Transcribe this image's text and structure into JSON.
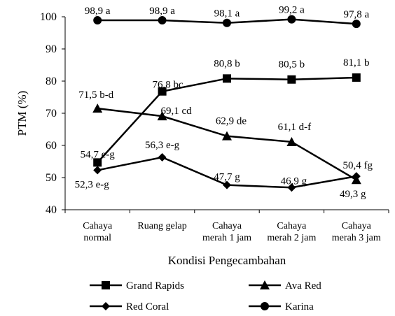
{
  "chart_data": {
    "type": "line",
    "title": "",
    "xlabel": "Kondisi Pengecambahan",
    "ylabel": "PTM (%)",
    "ylim": [
      40,
      100
    ],
    "yticks": [
      40,
      50,
      60,
      70,
      80,
      90,
      100
    ],
    "grid": false,
    "legend_position": "bottom",
    "categories": [
      [
        "Cahaya",
        "normal"
      ],
      [
        "Ruang gelap"
      ],
      [
        "Cahaya",
        "merah 1 jam"
      ],
      [
        "Cahaya",
        "merah 2 jam"
      ],
      [
        "Cahaya",
        "merah 3 jam"
      ]
    ],
    "series": [
      {
        "name": "Grand Rapids",
        "marker": "square",
        "values": [
          54.7,
          76.8,
          80.8,
          80.5,
          81.1
        ],
        "labels": [
          "54,7 e-g",
          "76,8 bc",
          "80,8 b",
          "80,5 b",
          "81,1 b"
        ]
      },
      {
        "name": "Ava Red",
        "marker": "triangle",
        "values": [
          71.5,
          69.1,
          62.9,
          61.1,
          49.3
        ],
        "labels": [
          "71,5 b-d",
          "69,1 cd",
          "62,9 de",
          "61,1 d-f",
          "49,3 g"
        ]
      },
      {
        "name": "Red Coral",
        "marker": "diamond",
        "values": [
          52.3,
          56.3,
          47.7,
          46.9,
          50.4
        ],
        "labels": [
          "52,3 e-g",
          "56,3 e-g",
          "47,7 g",
          "46,9 g",
          "50,4 fg"
        ]
      },
      {
        "name": "Karina",
        "marker": "circle",
        "values": [
          98.9,
          98.9,
          98.1,
          99.2,
          97.8
        ],
        "labels": [
          "98,9 a",
          "98,9 a",
          "98,1 a",
          "99,2 a",
          "97,8 a"
        ]
      }
    ]
  }
}
